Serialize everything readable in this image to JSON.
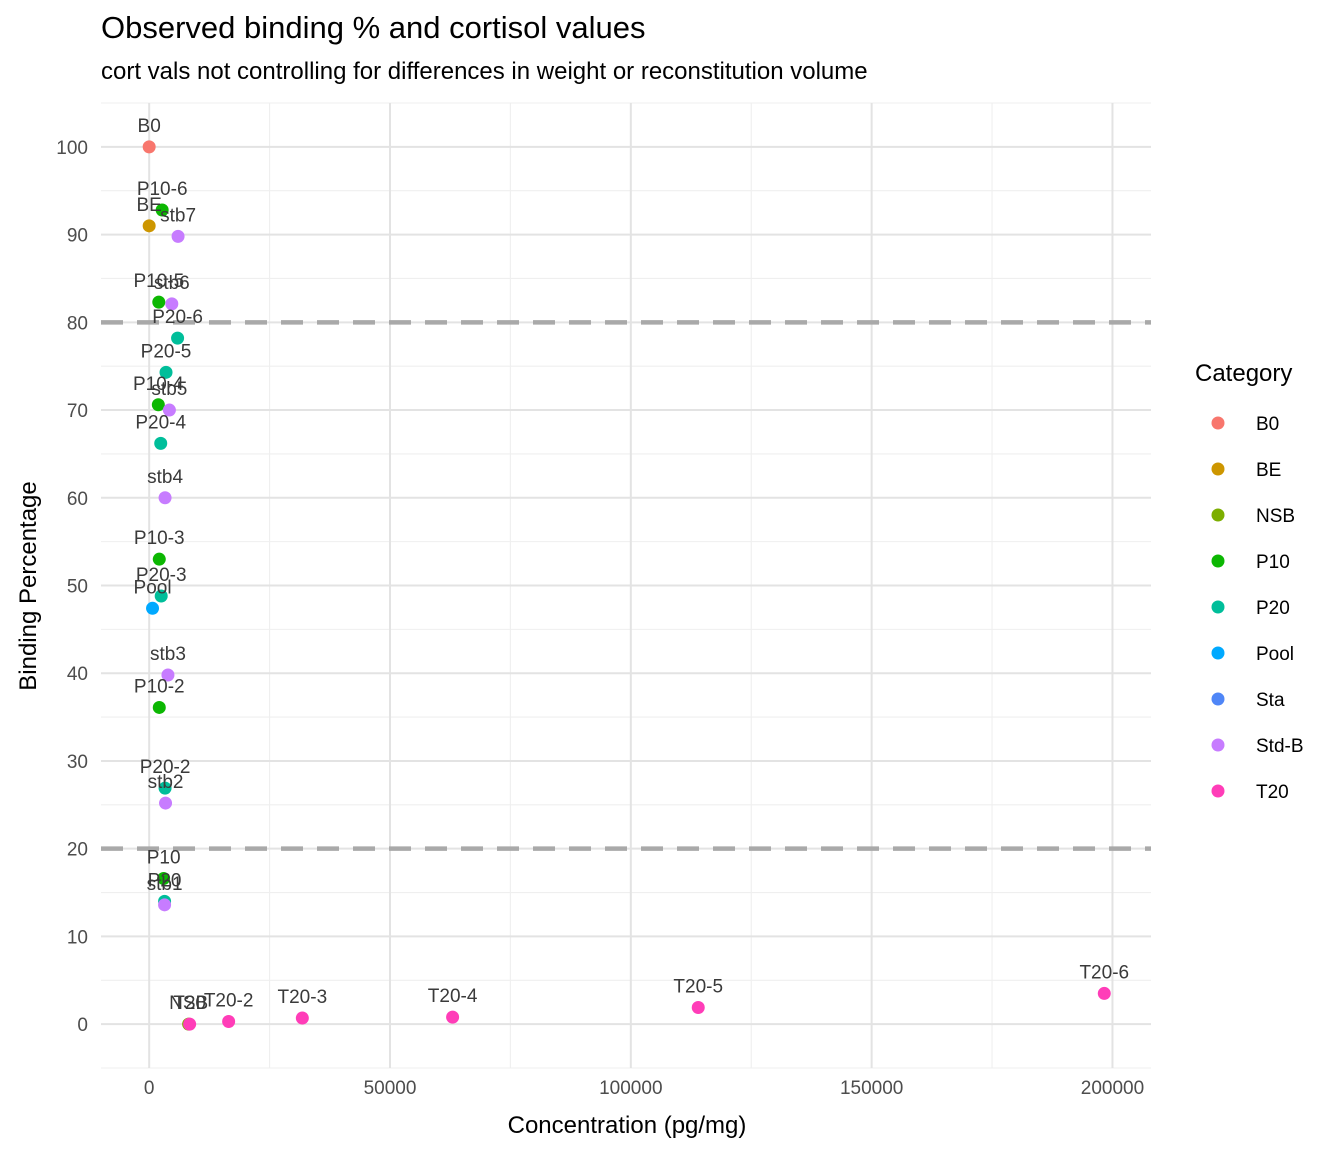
{
  "chart_data": {
    "type": "scatter",
    "title": "Observed binding % and cortisol values",
    "subtitle": "cort vals not controlling for differences in weight or reconstitution volume",
    "xlabel": "Concentration (pg/mg)",
    "ylabel": "Binding Percentage",
    "xlim": [
      -10000,
      208000
    ],
    "ylim": [
      -5,
      105
    ],
    "x_ticks": [
      0,
      50000,
      100000,
      150000,
      200000
    ],
    "x_tick_labels": [
      "0",
      "50000",
      "100000",
      "150000",
      "200000"
    ],
    "y_ticks": [
      0,
      10,
      20,
      30,
      40,
      50,
      60,
      70,
      80,
      90,
      100
    ],
    "y_tick_labels": [
      "0",
      "10",
      "20",
      "30",
      "40",
      "50",
      "60",
      "70",
      "80",
      "90",
      "100"
    ],
    "reference_lines_y": [
      20,
      80
    ],
    "grid": true,
    "legend": {
      "title": "Category",
      "placement": "right",
      "entries": [
        {
          "name": "B0",
          "color": "#F8766D"
        },
        {
          "name": "BE",
          "color": "#CD9600"
        },
        {
          "name": "NSB",
          "color": "#7CAE00"
        },
        {
          "name": "P10",
          "color": "#0CB702"
        },
        {
          "name": "P20",
          "color": "#00BE9A"
        },
        {
          "name": "Pool",
          "color": "#00A9FF"
        },
        {
          "name": "Sta",
          "color": "#4F86F7"
        },
        {
          "name": "Std-B",
          "color": "#C77CFF"
        },
        {
          "name": "T20",
          "color": "#FF3DB8"
        }
      ]
    },
    "points": [
      {
        "label": "B0",
        "category": "B0",
        "x": 0,
        "y": 100
      },
      {
        "label": "BE",
        "category": "BE",
        "x": 0,
        "y": 91
      },
      {
        "label": "P10-6",
        "category": "P10",
        "x": 2700,
        "y": 92.8
      },
      {
        "label": "stb7",
        "category": "Std-B",
        "x": 6000,
        "y": 89.8
      },
      {
        "label": "P10-5",
        "category": "P10",
        "x": 2000,
        "y": 82.3
      },
      {
        "label": "stb6",
        "category": "Std-B",
        "x": 4700,
        "y": 82.1
      },
      {
        "label": "P20-6",
        "category": "P20",
        "x": 5900,
        "y": 78.2
      },
      {
        "label": "P20-5",
        "category": "P20",
        "x": 3500,
        "y": 74.3
      },
      {
        "label": "P10-4",
        "category": "P10",
        "x": 1900,
        "y": 70.6
      },
      {
        "label": "stb5",
        "category": "Std-B",
        "x": 4200,
        "y": 70
      },
      {
        "label": "P20-4",
        "category": "P20",
        "x": 2400,
        "y": 66.2
      },
      {
        "label": "stb4",
        "category": "Std-B",
        "x": 3300,
        "y": 60
      },
      {
        "label": "P10-3",
        "category": "P10",
        "x": 2100,
        "y": 53
      },
      {
        "label": "P20-3",
        "category": "P20",
        "x": 2500,
        "y": 48.8
      },
      {
        "label": "Pool",
        "category": "Pool",
        "x": 700,
        "y": 47.4
      },
      {
        "label": "stb3",
        "category": "Std-B",
        "x": 3900,
        "y": 39.8
      },
      {
        "label": "P10-2",
        "category": "P10",
        "x": 2100,
        "y": 36.1
      },
      {
        "label": "P20-2",
        "category": "P20",
        "x": 3300,
        "y": 26.9
      },
      {
        "label": "stb2",
        "category": "Std-B",
        "x": 3400,
        "y": 25.2
      },
      {
        "label": "P10",
        "category": "P10",
        "x": 3000,
        "y": 16.6
      },
      {
        "label": "P20",
        "category": "P20",
        "x": 3200,
        "y": 14
      },
      {
        "label": "stb1",
        "category": "Std-B",
        "x": 3200,
        "y": 13.6
      },
      {
        "label": "NSB",
        "category": "NSB",
        "x": 8200,
        "y": 0
      },
      {
        "label": "T20",
        "category": "T20",
        "x": 8400,
        "y": 0
      },
      {
        "label": "T20-2",
        "category": "T20",
        "x": 16500,
        "y": 0.3
      },
      {
        "label": "T20-3",
        "category": "T20",
        "x": 31800,
        "y": 0.7
      },
      {
        "label": "T20-4",
        "category": "T20",
        "x": 63000,
        "y": 0.8
      },
      {
        "label": "T20-5",
        "category": "T20",
        "x": 114000,
        "y": 1.9
      },
      {
        "label": "T20-6",
        "category": "T20",
        "x": 198300,
        "y": 3.5
      }
    ]
  }
}
